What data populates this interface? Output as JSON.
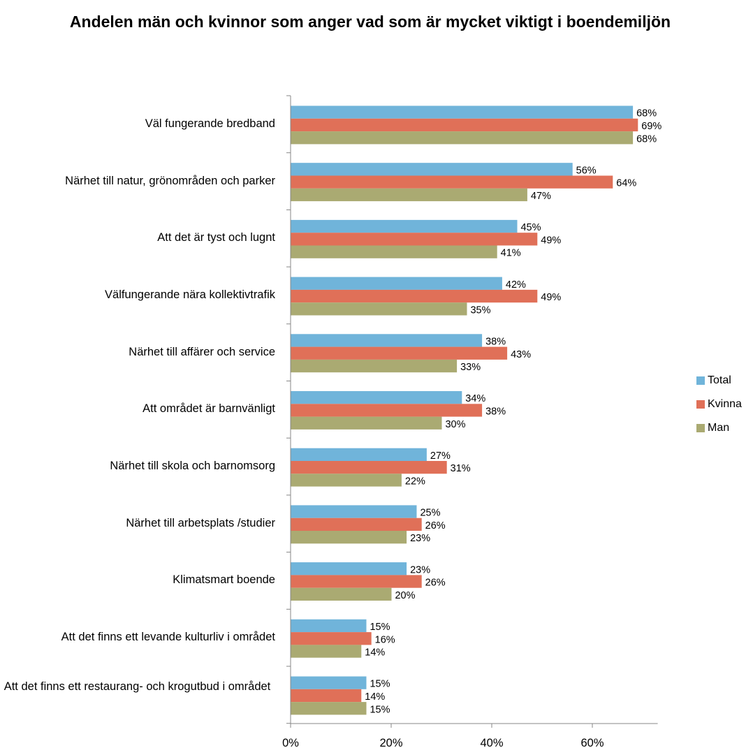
{
  "chart_data": {
    "type": "bar",
    "orientation": "horizontal",
    "title": "Andelen män och kvinnor som anger vad som är mycket viktigt i boendemiljön",
    "categories": [
      "Väl fungerande bredband",
      "Närhet till natur, grönområden och parker",
      "Att det är tyst och lugnt",
      "Välfungerande nära kollektivtrafik",
      "Närhet till affärer och service",
      "Att området är barnvänligt",
      "Närhet till skola och barnomsorg",
      "Närhet till arbetsplats /studier",
      "Klimatsmart boende",
      "Att det finns ett levande kulturliv i området",
      "Att det finns ett restaurang- och krogutbud i området"
    ],
    "series": [
      {
        "name": "Total",
        "color": "#70B4DA",
        "values": [
          68,
          56,
          45,
          42,
          38,
          34,
          27,
          25,
          23,
          15,
          15
        ]
      },
      {
        "name": "Kvinna",
        "color": "#E07058",
        "values": [
          69,
          64,
          49,
          49,
          43,
          38,
          31,
          26,
          26,
          16,
          14
        ]
      },
      {
        "name": "Man",
        "color": "#AAAA72",
        "values": [
          68,
          47,
          41,
          35,
          33,
          30,
          22,
          23,
          20,
          14,
          15
        ]
      }
    ],
    "value_suffix": "%",
    "xlim": [
      0,
      73
    ],
    "xticks": [
      0,
      20,
      40,
      60
    ],
    "xtick_labels": [
      "0%",
      "20%",
      "40%",
      "60%"
    ],
    "grid": false,
    "legend_position": "right"
  }
}
